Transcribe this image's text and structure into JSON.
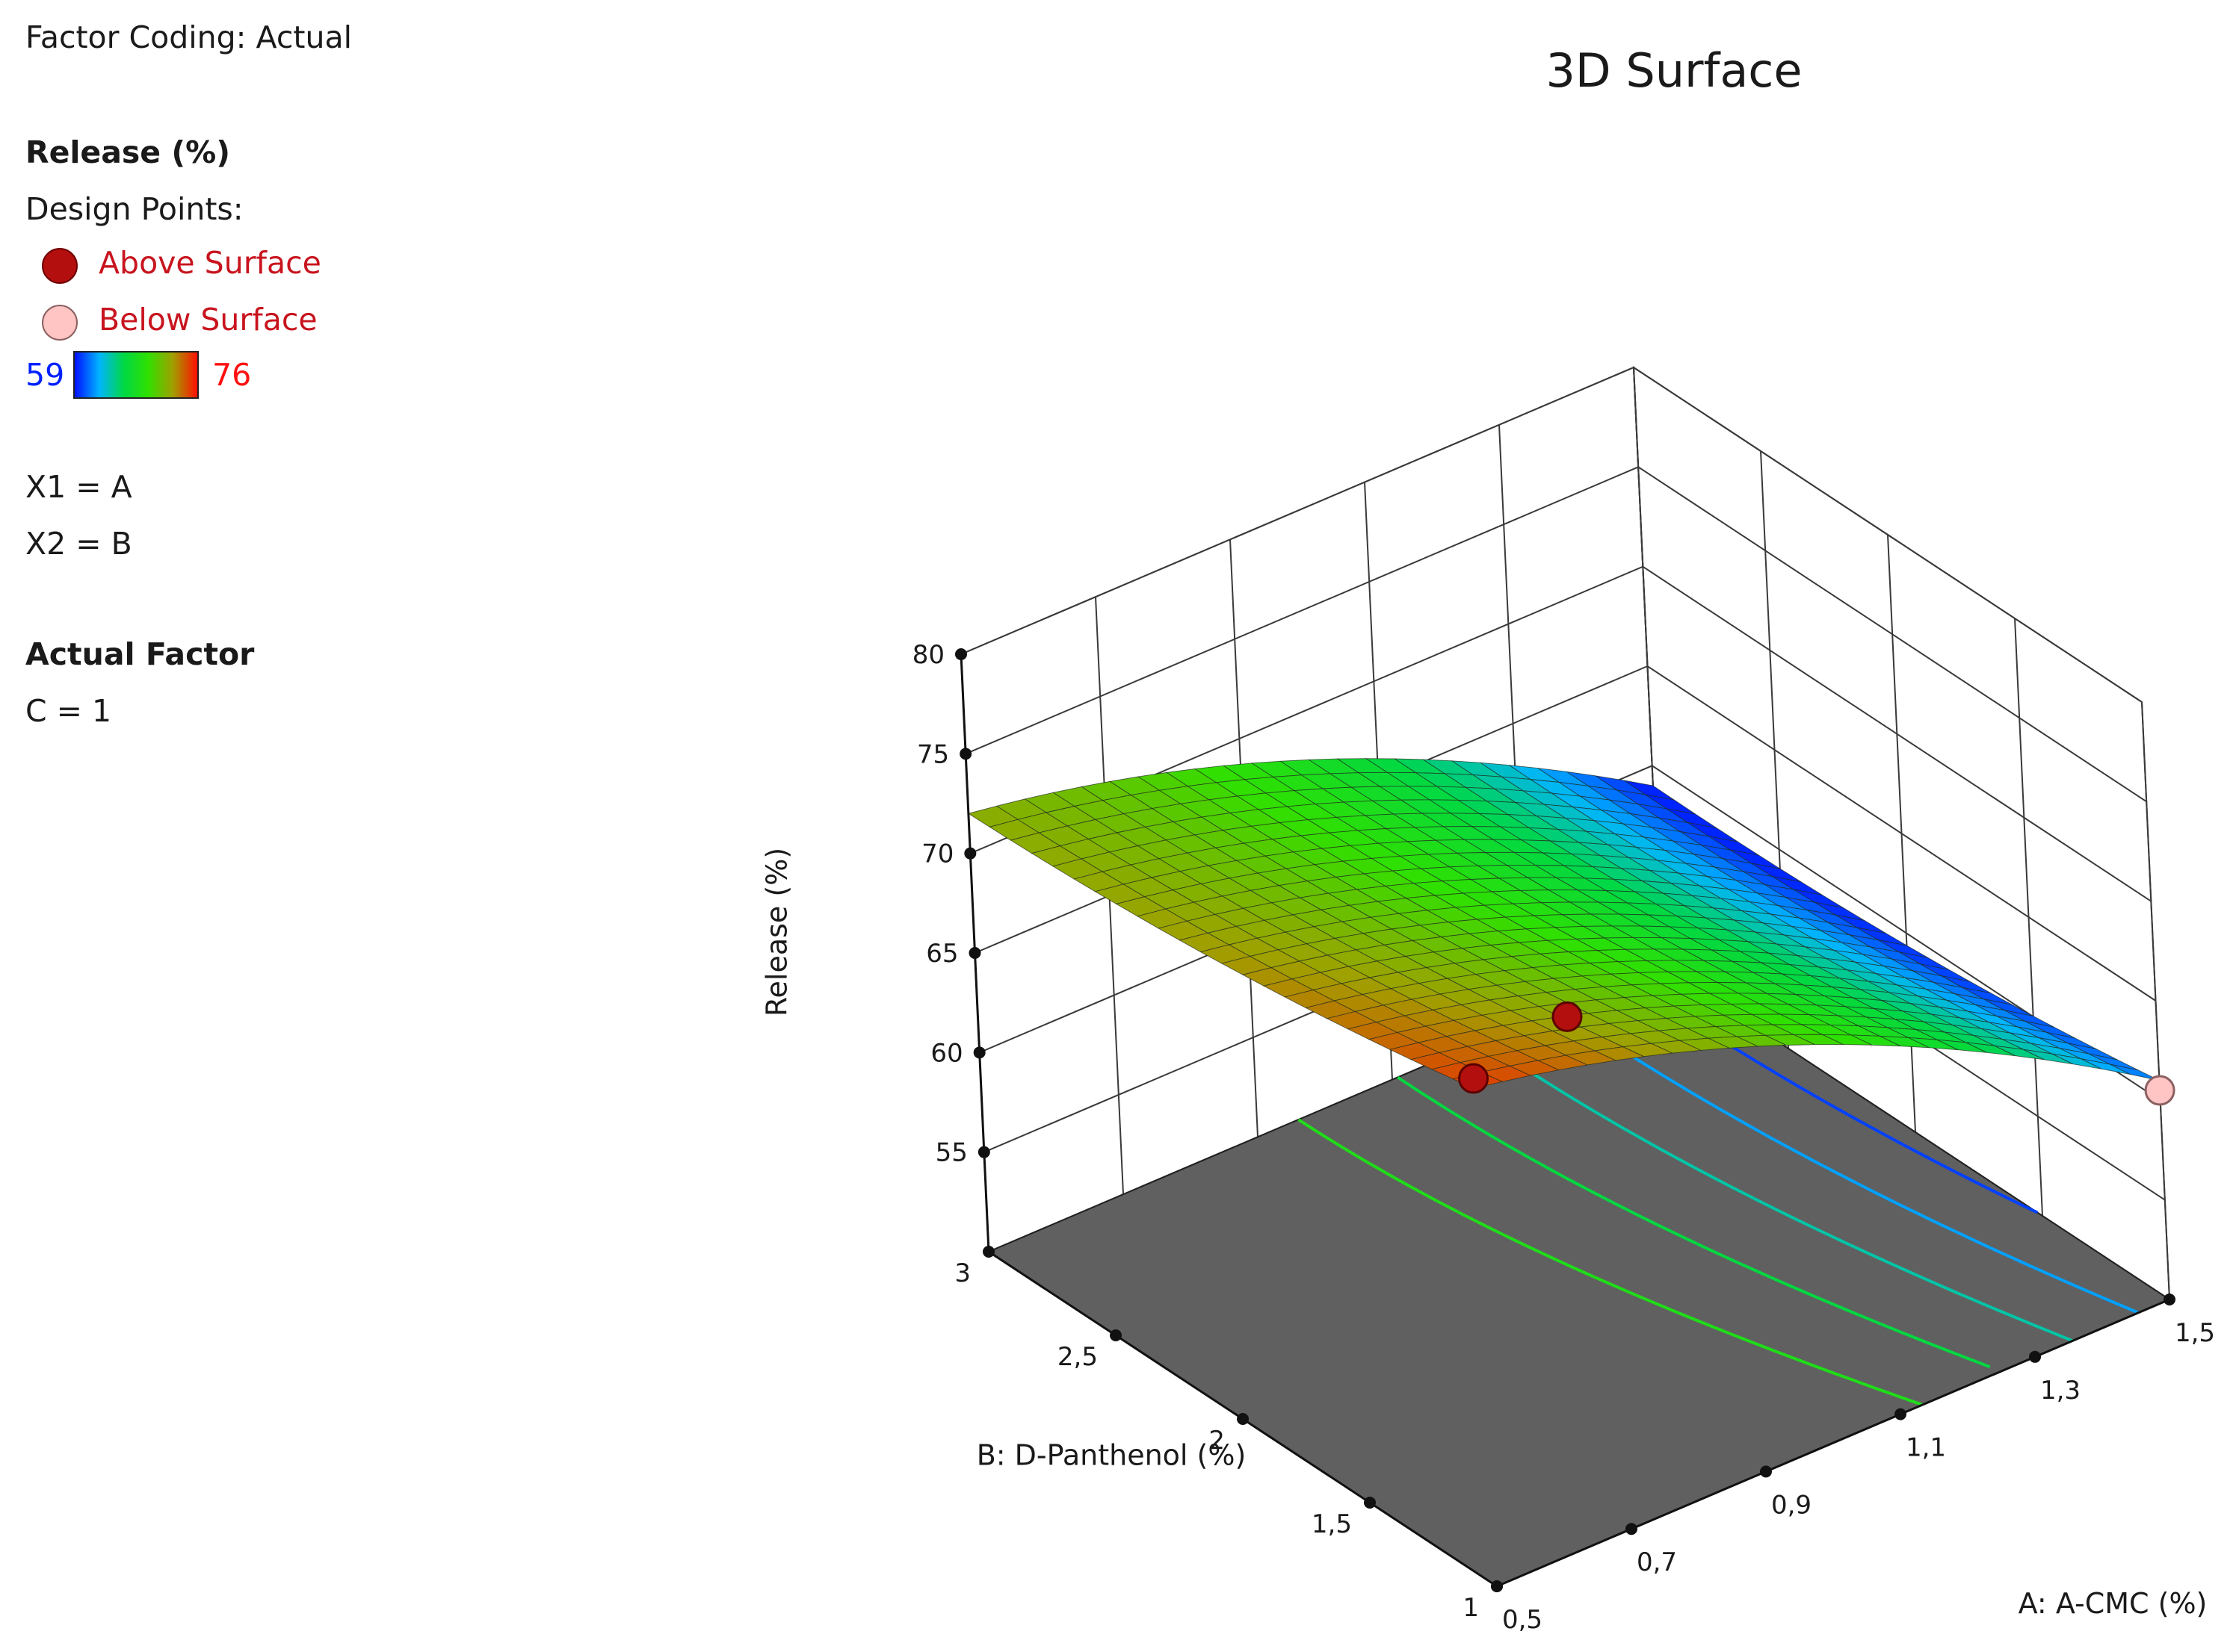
{
  "info": {
    "factor_coding": "Factor Coding: Actual",
    "response_title": "Release (%)",
    "design_points_label": "Design Points:",
    "above_label": "Above Surface",
    "below_label": "Below Surface",
    "colorbar_min": "59",
    "colorbar_max": "76",
    "x1_assignment": "X1 = A",
    "x2_assignment": "X2 = B",
    "actual_factor_heading": "Actual Factor",
    "actual_factor_value": "C = 1"
  },
  "chart_data": {
    "type": "surface3d",
    "title": "3D Surface",
    "xlabel": "A: A-CMC (%)",
    "ylabel": "B: D-Panthenol (%)",
    "zlabel": "Release (%)",
    "x_ticks": [
      "0,5",
      "0,7",
      "0,9",
      "1,1",
      "1,3",
      "1,5"
    ],
    "y_ticks": [
      "1",
      "1,5",
      "2",
      "2,5",
      "3"
    ],
    "z_ticks": [
      "55",
      "60",
      "65",
      "70",
      "75",
      "80"
    ],
    "xlim": [
      0.5,
      1.5
    ],
    "ylim": [
      1,
      3
    ],
    "zlim": [
      50,
      80
    ],
    "colormap_range": [
      59,
      76
    ],
    "colors": [
      "#0010ff",
      "#00b4ff",
      "#00d844",
      "#30e000",
      "#a0a000",
      "#ff1000"
    ],
    "surface_corners": [
      {
        "A": 0.5,
        "B": 1,
        "release": 75
      },
      {
        "A": 0.5,
        "B": 3,
        "release": 72
      },
      {
        "A": 1.5,
        "B": 1,
        "release": 61
      },
      {
        "A": 1.5,
        "B": 3,
        "release": 59
      }
    ],
    "contour_levels": [
      60,
      62,
      64,
      66,
      68
    ],
    "design_points": [
      {
        "A": 0.5,
        "B": 1,
        "release": 75.5,
        "position": "above"
      },
      {
        "A": 1.0,
        "B": 2,
        "release": 63,
        "position": "above"
      },
      {
        "A": 1.5,
        "B": 1,
        "release": 60.5,
        "position": "below"
      }
    ]
  }
}
